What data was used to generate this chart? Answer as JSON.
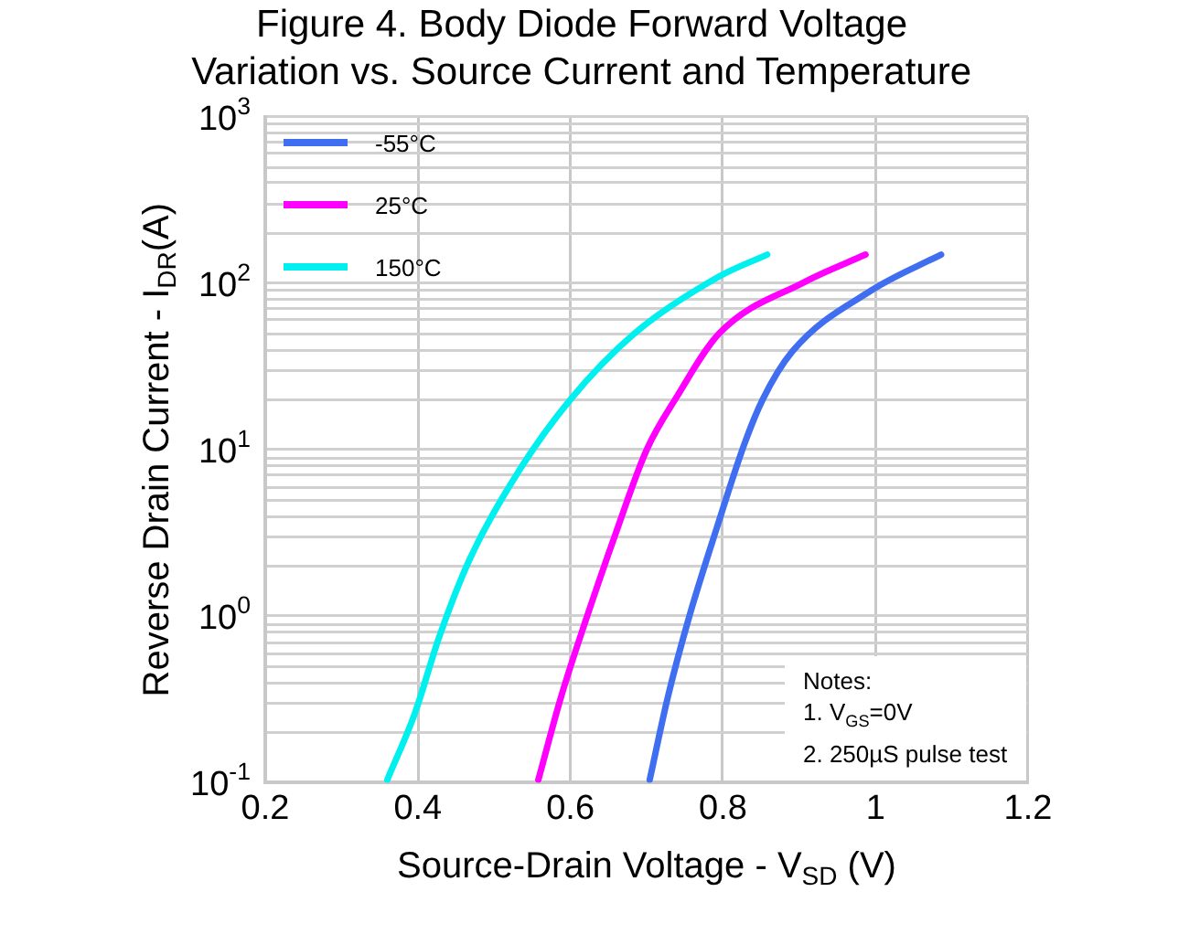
{
  "chart_data": {
    "type": "line",
    "title": "Figure 4. Body Diode Forward Voltage\nVariation vs. Source Current and Temperature",
    "xlabel": "Source-Drain Voltage - V$_{SD}$ (V)",
    "ylabel": "Reverse Drain Current - I$_{DR}$(A)",
    "series": [
      {
        "name": "-55°C",
        "color": "#3f6ef0",
        "x": [
          0.704,
          0.728,
          0.756,
          0.792,
          0.828,
          0.852,
          0.891,
          0.995,
          1.086
        ],
        "values": [
          0.104,
          0.33,
          1.0,
          3.4,
          10.8,
          20,
          39,
          91,
          149
        ]
      },
      {
        "name": "25°C",
        "color": "#ff00ff",
        "x": [
          0.558,
          0.588,
          0.62,
          0.66,
          0.7,
          0.74,
          0.795,
          0.907,
          0.987
        ],
        "values": [
          0.104,
          0.33,
          0.94,
          3.2,
          10,
          21,
          50,
          102,
          149
        ]
      },
      {
        "name": "150°C",
        "color": "#00f0f0",
        "x": [
          0.36,
          0.396,
          0.428,
          0.468,
          0.532,
          0.599,
          0.684,
          0.795,
          0.858
        ],
        "values": [
          0.104,
          0.26,
          0.75,
          2.2,
          7.4,
          19.8,
          50,
          110,
          149
        ]
      }
    ],
    "xlim": [
      0.2,
      1.2
    ],
    "xticks": [
      0.2,
      0.4,
      0.6,
      0.8,
      1,
      1.2
    ],
    "ylim": [
      0.1,
      1000
    ],
    "yticks": [
      {
        "value": 0.1,
        "label": "10$^{-1}$"
      },
      {
        "value": 1,
        "label": "10$^{0}$"
      },
      {
        "value": 10,
        "label": "10$^{1}$"
      },
      {
        "value": 100,
        "label": "10$^{2}$"
      },
      {
        "value": 1000,
        "label": "10$^{3}$"
      }
    ],
    "log": "y",
    "grid": true,
    "legend": "top left",
    "marker": "none",
    "line_style": "solid",
    "annotations": [
      "Notes:",
      "1. V$_{GS}$=0V",
      "2. 250µS pulse test"
    ]
  }
}
